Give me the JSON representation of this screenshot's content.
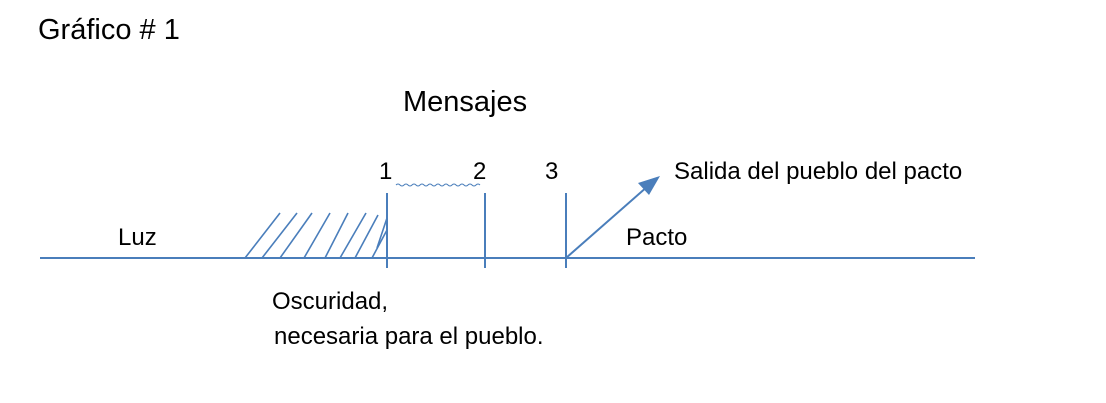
{
  "figure_label": "Gráfico # 1",
  "title": "Mensajes",
  "markers": [
    "1",
    "2",
    "3"
  ],
  "labels": {
    "luz": "Luz",
    "pacto": "Pacto",
    "salida": "Salida del pueblo del pacto",
    "oscuridad_line1": "Oscuridad,",
    "oscuridad_line2": "necesaria para el pueblo."
  },
  "colors": {
    "line": "#4a7ebb",
    "text": "#000000"
  }
}
